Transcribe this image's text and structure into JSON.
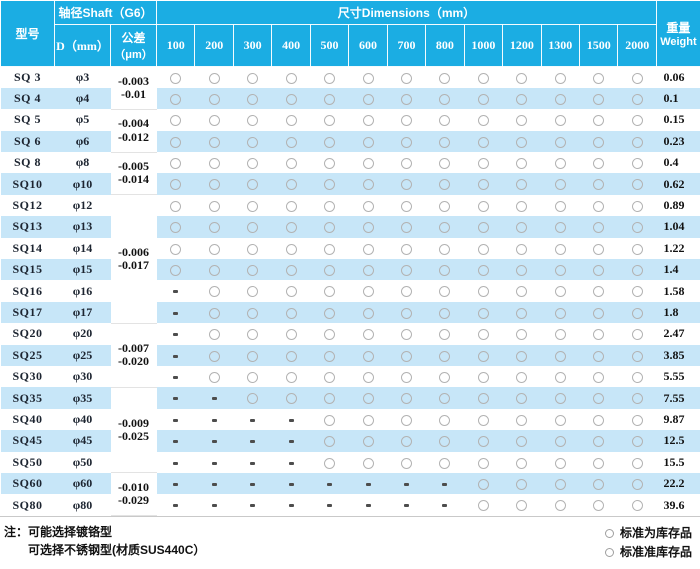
{
  "colors": {
    "header_blue": "#1badE3",
    "stripe_blue": "#c7e6f8",
    "circle_gray": "#b3b3b3",
    "dash_gray": "#4d4d4d"
  },
  "header": {
    "model_label": "型号",
    "shaft_label": "轴径Shaft（G6）",
    "dimensions_label": "尺寸Dimensions（mm）",
    "d_label": "D（mm）",
    "tolerance_label_line1": "公差",
    "tolerance_label_line2": "（μm）",
    "weight_label_line1": "重量",
    "weight_label_line2": "Weight",
    "dimension_columns": [
      "100",
      "200",
      "300",
      "400",
      "500",
      "600",
      "700",
      "800",
      "1000",
      "1200",
      "1300",
      "1500",
      "2000"
    ]
  },
  "rows": [
    {
      "model": "SQ 3",
      "diameter": "φ3",
      "availability": [
        "o",
        "o",
        "o",
        "o",
        "o",
        "o",
        "o",
        "o",
        "o",
        "o",
        "o",
        "o",
        "o"
      ],
      "weight": "0.06"
    },
    {
      "model": "SQ 4",
      "diameter": "φ4",
      "availability": [
        "o",
        "o",
        "o",
        "o",
        "o",
        "o",
        "o",
        "o",
        "o",
        "o",
        "o",
        "o",
        "o"
      ],
      "weight": "0.1"
    },
    {
      "model": "SQ 5",
      "diameter": "φ5",
      "availability": [
        "o",
        "o",
        "o",
        "o",
        "o",
        "o",
        "o",
        "o",
        "o",
        "o",
        "o",
        "o",
        "o"
      ],
      "weight": "0.15"
    },
    {
      "model": "SQ 6",
      "diameter": "φ6",
      "availability": [
        "o",
        "o",
        "o",
        "o",
        "o",
        "o",
        "o",
        "o",
        "o",
        "o",
        "o",
        "o",
        "o"
      ],
      "weight": "0.23"
    },
    {
      "model": "SQ 8",
      "diameter": "φ8",
      "availability": [
        "o",
        "o",
        "o",
        "o",
        "o",
        "o",
        "o",
        "o",
        "o",
        "o",
        "o",
        "o",
        "o"
      ],
      "weight": "0.4"
    },
    {
      "model": "SQ10",
      "diameter": "φ10",
      "availability": [
        "o",
        "o",
        "o",
        "o",
        "o",
        "o",
        "o",
        "o",
        "o",
        "o",
        "o",
        "o",
        "o"
      ],
      "weight": "0.62"
    },
    {
      "model": "SQ12",
      "diameter": "φ12",
      "availability": [
        "o",
        "o",
        "o",
        "o",
        "o",
        "o",
        "o",
        "o",
        "o",
        "o",
        "o",
        "o",
        "o"
      ],
      "weight": "0.89"
    },
    {
      "model": "SQ13",
      "diameter": "φ13",
      "availability": [
        "o",
        "o",
        "o",
        "o",
        "o",
        "o",
        "o",
        "o",
        "o",
        "o",
        "o",
        "o",
        "o"
      ],
      "weight": "1.04"
    },
    {
      "model": "SQ14",
      "diameter": "φ14",
      "availability": [
        "o",
        "o",
        "o",
        "o",
        "o",
        "o",
        "o",
        "o",
        "o",
        "o",
        "o",
        "o",
        "o"
      ],
      "weight": "1.22"
    },
    {
      "model": "SQ15",
      "diameter": "φ15",
      "availability": [
        "o",
        "o",
        "o",
        "o",
        "o",
        "o",
        "o",
        "o",
        "o",
        "o",
        "o",
        "o",
        "o"
      ],
      "weight": "1.4"
    },
    {
      "model": "SQ16",
      "diameter": "φ16",
      "availability": [
        "-",
        "o",
        "o",
        "o",
        "o",
        "o",
        "o",
        "o",
        "o",
        "o",
        "o",
        "o",
        "o"
      ],
      "weight": "1.58"
    },
    {
      "model": "SQ17",
      "diameter": "φ17",
      "availability": [
        "-",
        "o",
        "o",
        "o",
        "o",
        "o",
        "o",
        "o",
        "o",
        "o",
        "o",
        "o",
        "o"
      ],
      "weight": "1.8"
    },
    {
      "model": "SQ20",
      "diameter": "φ20",
      "availability": [
        "-",
        "o",
        "o",
        "o",
        "o",
        "o",
        "o",
        "o",
        "o",
        "o",
        "o",
        "o",
        "o"
      ],
      "weight": "2.47"
    },
    {
      "model": "SQ25",
      "diameter": "φ25",
      "availability": [
        "-",
        "o",
        "o",
        "o",
        "o",
        "o",
        "o",
        "o",
        "o",
        "o",
        "o",
        "o",
        "o"
      ],
      "weight": "3.85"
    },
    {
      "model": "SQ30",
      "diameter": "φ30",
      "availability": [
        "-",
        "o",
        "o",
        "o",
        "o",
        "o",
        "o",
        "o",
        "o",
        "o",
        "o",
        "o",
        "o"
      ],
      "weight": "5.55"
    },
    {
      "model": "SQ35",
      "diameter": "φ35",
      "availability": [
        "-",
        "-",
        "o",
        "o",
        "o",
        "o",
        "o",
        "o",
        "o",
        "o",
        "o",
        "o",
        "o"
      ],
      "weight": "7.55"
    },
    {
      "model": "SQ40",
      "diameter": "φ40",
      "availability": [
        "-",
        "-",
        "-",
        "-",
        "o",
        "o",
        "o",
        "o",
        "o",
        "o",
        "o",
        "o",
        "o"
      ],
      "weight": "9.87"
    },
    {
      "model": "SQ45",
      "diameter": "φ45",
      "availability": [
        "-",
        "-",
        "-",
        "-",
        "o",
        "o",
        "o",
        "o",
        "o",
        "o",
        "o",
        "o",
        "o"
      ],
      "weight": "12.5"
    },
    {
      "model": "SQ50",
      "diameter": "φ50",
      "availability": [
        "-",
        "-",
        "-",
        "-",
        "o",
        "o",
        "o",
        "o",
        "o",
        "o",
        "o",
        "o",
        "o"
      ],
      "weight": "15.5"
    },
    {
      "model": "SQ60",
      "diameter": "φ60",
      "availability": [
        "-",
        "-",
        "-",
        "-",
        "-",
        "-",
        "-",
        "-",
        "o",
        "o",
        "o",
        "o",
        "o"
      ],
      "weight": "22.2"
    },
    {
      "model": "SQ80",
      "diameter": "φ80",
      "availability": [
        "-",
        "-",
        "-",
        "-",
        "-",
        "-",
        "-",
        "-",
        "o",
        "o",
        "o",
        "o",
        "o"
      ],
      "weight": "39.6"
    }
  ],
  "tolerance_groups": [
    {
      "start": 0,
      "span": 2,
      "lines": [
        "-0.003",
        "-0.01"
      ]
    },
    {
      "start": 2,
      "span": 2,
      "lines": [
        "-0.004",
        "-0.012"
      ]
    },
    {
      "start": 4,
      "span": 2,
      "lines": [
        "-0.005",
        "-0.014"
      ]
    },
    {
      "start": 6,
      "span": 6,
      "lines": [
        "-0.006",
        "-0.017"
      ]
    },
    {
      "start": 12,
      "span": 3,
      "lines": [
        "-0.007",
        "-0.020"
      ]
    },
    {
      "start": 15,
      "span": 4,
      "lines": [
        "-0.009",
        "-0.025"
      ]
    },
    {
      "start": 19,
      "span": 2,
      "lines": [
        "-0.010",
        "-0.029"
      ]
    }
  ],
  "footer": {
    "note_prefix": "注：",
    "note_line1": "可能选择镀铬型",
    "note_line2": "可选择不锈钢型(材质SUS440C）",
    "legend": [
      {
        "label": "标准为库存品"
      },
      {
        "label": "标准准库存品"
      }
    ]
  }
}
